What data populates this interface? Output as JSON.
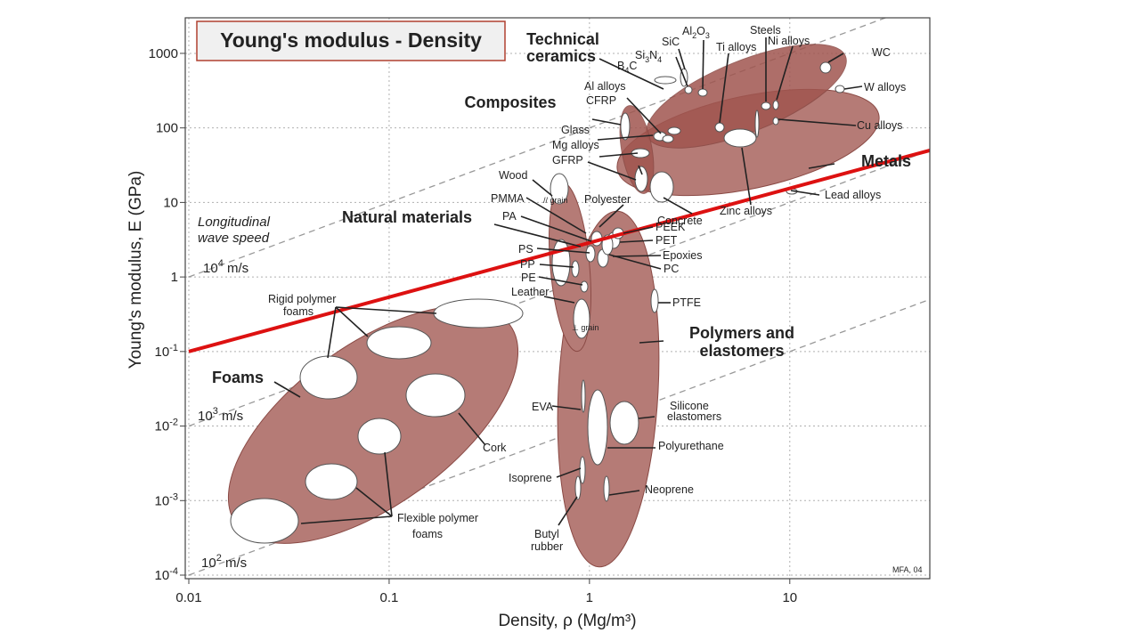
{
  "chart_data": {
    "type": "scatter",
    "title": "Young's modulus - Density",
    "xlabel": "Density, ρ  (Mg/m³)",
    "ylabel": "Young's modulus, E (GPa)",
    "xscale": "log",
    "yscale": "log",
    "xlim": [
      0.01,
      50
    ],
    "ylim": [
      0.0001,
      3000
    ],
    "x_ticks": [
      {
        "value": 0.01,
        "label": "0.01"
      },
      {
        "value": 0.1,
        "label": "0.1"
      },
      {
        "value": 1,
        "label": "1"
      },
      {
        "value": 10,
        "label": "10"
      }
    ],
    "y_ticks": [
      {
        "value": 0.0001,
        "base": "10",
        "exp": "-4"
      },
      {
        "value": 0.001,
        "base": "10",
        "exp": "-3"
      },
      {
        "value": 0.01,
        "base": "10",
        "exp": "-2"
      },
      {
        "value": 0.1,
        "base": "10",
        "exp": "-1"
      },
      {
        "value": 1,
        "base": "1",
        "exp": ""
      },
      {
        "value": 10,
        "base": "10",
        "exp": ""
      },
      {
        "value": 100,
        "base": "100",
        "exp": ""
      },
      {
        "value": 1000,
        "base": "1000",
        "exp": ""
      }
    ],
    "grid": true,
    "wave_speed_guides": {
      "heading_line1": "Longitudinal",
      "heading_line2": "wave speed",
      "lines": [
        {
          "speed": "10",
          "exp": "4",
          "unit": " m/s",
          "E_at_rho_0_01": 1
        },
        {
          "speed": "10",
          "exp": "3",
          "unit": " m/s",
          "E_at_rho_0_01": 0.01
        },
        {
          "speed": "10",
          "exp": "2",
          "unit": " m/s",
          "E_at_rho_0_01": 0.0001
        }
      ]
    },
    "highlight_line": {
      "color": "#dd1111",
      "x": [
        0.01,
        50
      ],
      "y": [
        0.1,
        50
      ]
    },
    "families": [
      {
        "name": "Technical ceramics",
        "label_lines": [
          "Technical",
          "ceramics"
        ]
      },
      {
        "name": "Composites",
        "label_lines": [
          "Composites"
        ]
      },
      {
        "name": "Metals",
        "label_lines": [
          "Metals"
        ]
      },
      {
        "name": "Natural materials",
        "label_lines": [
          "Natural materials"
        ]
      },
      {
        "name": "Foams",
        "label_lines": [
          "Foams"
        ]
      },
      {
        "name": "Polymers and elastomers",
        "label_lines": [
          "Polymers and",
          "elastomers"
        ]
      }
    ],
    "materials": [
      {
        "name": "Al2O3",
        "rho": 3.9,
        "E": 380
      },
      {
        "name": "SiC",
        "rho": 3.1,
        "E": 420
      },
      {
        "name": "Si3N4",
        "rho": 3.2,
        "E": 300
      },
      {
        "name": "B4C",
        "rho": 2.5,
        "E": 450
      },
      {
        "name": "Steels",
        "rho": 7.8,
        "E": 200
      },
      {
        "name": "Ni alloys",
        "rho": 8.9,
        "E": 200
      },
      {
        "name": "Ti alloys",
        "rho": 4.5,
        "E": 110
      },
      {
        "name": "WC",
        "rho": 15.6,
        "E": 650
      },
      {
        "name": "W alloys",
        "rho": 19,
        "E": 400
      },
      {
        "name": "Cu alloys",
        "rho": 8.9,
        "E": 130
      },
      {
        "name": "Lead alloys",
        "rho": 11,
        "E": 15
      },
      {
        "name": "Zinc alloys",
        "rho": 6.5,
        "E": 90
      },
      {
        "name": "Al alloys",
        "rho": 2.7,
        "E": 70
      },
      {
        "name": "CFRP",
        "rho": 1.6,
        "E": 100
      },
      {
        "name": "Glass",
        "rho": 2.5,
        "E": 70
      },
      {
        "name": "Mg alloys",
        "rho": 1.8,
        "E": 45
      },
      {
        "name": "GFRP",
        "rho": 1.9,
        "E": 25
      },
      {
        "name": "Concrete",
        "rho": 2.4,
        "E": 30
      },
      {
        "name": "Wood // grain",
        "rho": 0.7,
        "E": 15
      },
      {
        "name": "Wood ⊥ grain",
        "rho": 0.7,
        "E": 0.8
      },
      {
        "name": "PMMA",
        "rho": 1.18,
        "E": 3
      },
      {
        "name": "PA",
        "rho": 1.14,
        "E": 2.8
      },
      {
        "name": "PS",
        "rho": 1.05,
        "E": 3
      },
      {
        "name": "PP",
        "rho": 0.9,
        "E": 1.4
      },
      {
        "name": "PE",
        "rho": 0.95,
        "E": 0.9
      },
      {
        "name": "Leather",
        "rho": 0.95,
        "E": 0.3
      },
      {
        "name": "Polyester",
        "rho": 1.3,
        "E": 4
      },
      {
        "name": "PEEK",
        "rho": 1.3,
        "E": 3.8
      },
      {
        "name": "PET",
        "rho": 1.4,
        "E": 3
      },
      {
        "name": "Epoxies",
        "rho": 1.2,
        "E": 2.5
      },
      {
        "name": "PC",
        "rho": 1.2,
        "E": 2.4
      },
      {
        "name": "PTFE",
        "rho": 2.2,
        "E": 0.5
      },
      {
        "name": "EVA",
        "rho": 0.95,
        "E": 0.02
      },
      {
        "name": "Silicone elastomers",
        "rho": 1.8,
        "E": 0.01
      },
      {
        "name": "Polyurethane",
        "rho": 1.15,
        "E": 0.01
      },
      {
        "name": "Isoprene",
        "rho": 0.93,
        "E": 0.002
      },
      {
        "name": "Neoprene",
        "rho": 1.25,
        "E": 0.001
      },
      {
        "name": "Butyl rubber",
        "rho": 0.9,
        "E": 0.001
      },
      {
        "name": "Cork",
        "rho": 0.18,
        "E": 0.03
      },
      {
        "name": "Rigid polymer foams",
        "rho": 0.1,
        "E": 0.1
      },
      {
        "name": "Flexible polymer foams",
        "rho": 0.05,
        "E": 0.002
      }
    ],
    "label_text": {
      "Al2O3": {
        "main": "Al",
        "sub1": "2",
        "mid": "O",
        "sub2": "3"
      },
      "Si3N4": {
        "main": "Si",
        "sub1": "3",
        "mid": "N",
        "sub2": "4"
      },
      "B4C": {
        "main": "B",
        "sub1": "4",
        "mid": "C"
      },
      "SiC": "SiC",
      "Steels": "Steels",
      "Ni alloys": "Ni alloys",
      "Ti alloys": "Ti alloys",
      "WC": "WC",
      "W alloys": "W alloys",
      "Cu alloys": "Cu alloys",
      "Lead alloys": "Lead alloys",
      "Zinc alloys": "Zinc alloys",
      "Al alloys": "Al alloys",
      "CFRP": "CFRP",
      "Glass": "Glass",
      "Mg alloys": "Mg alloys",
      "GFRP": "GFRP",
      "Concrete": "Concrete",
      "Wood": "Wood",
      "grain_par": "// grain",
      "grain_perp": "⊥ grain",
      "PMMA": "PMMA",
      "PA": "PA",
      "PS": "PS",
      "PP": "PP",
      "PE": "PE",
      "Leather": "Leather",
      "Polyester": "Polyester",
      "PEEK": "PEEK",
      "PET": "PET",
      "Epoxies": "Epoxies",
      "PC": "PC",
      "PTFE": "PTFE",
      "EVA": "EVA",
      "Silicone1": "Silicone",
      "Silicone2": "elastomers",
      "Polyurethane": "Polyurethane",
      "Isoprene": "Isoprene",
      "Neoprene": "Neoprene",
      "Butyl1": "Butyl",
      "Butyl2": "rubber",
      "Cork": "Cork",
      "Rigid1": "Rigid polymer",
      "Rigid2": "foams",
      "Flex1": "Flexible polymer",
      "Flex2": "foams"
    },
    "credit": "MFA, 04"
  },
  "colors": {
    "envelope": "#b57b76",
    "envelope_stroke": "#8a4a45",
    "envelope_dark": "#a0554f",
    "highlight": "#dd1111",
    "grid": "#b0b0b0",
    "guide": "#999999",
    "title_box_border": "#b04030",
    "title_box_fill": "#f0f0f0"
  }
}
